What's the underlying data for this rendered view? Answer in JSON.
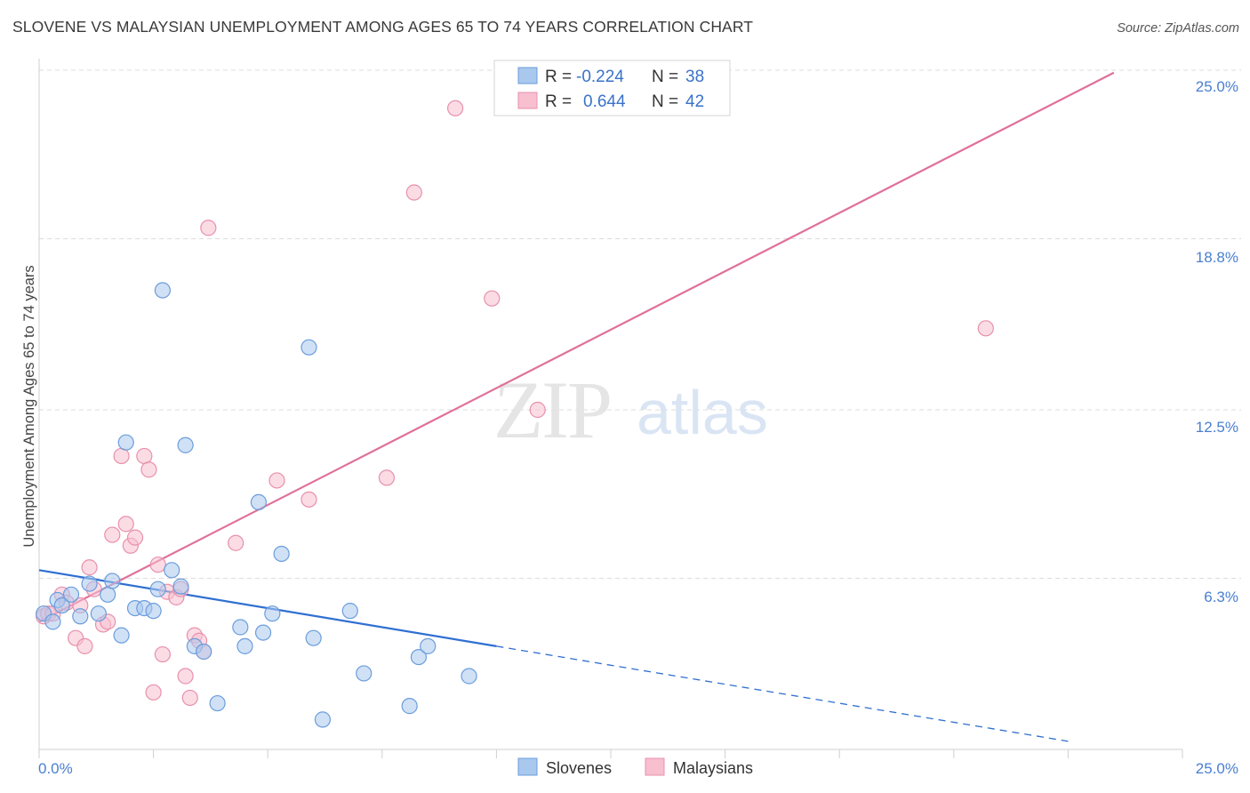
{
  "title": "SLOVENE VS MALAYSIAN UNEMPLOYMENT AMONG AGES 65 TO 74 YEARS CORRELATION CHART",
  "source": "Source: ZipAtlas.com",
  "watermark": {
    "zip": "ZIP",
    "atlas": "atlas"
  },
  "colors": {
    "blue_fill": "#a9c8ee",
    "blue_stroke": "#6b9ddc",
    "blue_line": "#2f6fd1",
    "pink_fill": "#f7bfd0",
    "pink_stroke": "#e890ac",
    "pink_line": "#e0709a",
    "grid": "#dcdcdc",
    "axis_label": "#4a7fd0"
  },
  "legend": {
    "r_label": "R =",
    "n_label": "N =",
    "rows": [
      {
        "series": "Slovenes",
        "r": "-0.224",
        "n": "38"
      },
      {
        "series": "Malaysians",
        "r": "0.644",
        "n": "42"
      }
    ]
  },
  "chart_data": {
    "type": "scatter",
    "title": "SLOVENE VS MALAYSIAN UNEMPLOYMENT AMONG AGES 65 TO 74 YEARS CORRELATION CHART",
    "xlabel": "",
    "ylabel": "Unemployment Among Ages 65 to 74 years",
    "xlim": [
      0,
      25
    ],
    "ylim": [
      0,
      25
    ],
    "x_tick_labels": [
      "0.0%",
      "25.0%"
    ],
    "y_ticks": [
      6.3,
      12.5,
      18.8,
      25.0
    ],
    "y_tick_labels": [
      "6.3%",
      "12.5%",
      "18.8%",
      "25.0%"
    ],
    "grid": true,
    "series": [
      {
        "name": "Slovenes",
        "points": [
          [
            0.1,
            5.0
          ],
          [
            0.3,
            4.7
          ],
          [
            0.4,
            5.5
          ],
          [
            0.5,
            5.3
          ],
          [
            0.7,
            5.7
          ],
          [
            0.9,
            4.9
          ],
          [
            1.1,
            6.1
          ],
          [
            1.3,
            5.0
          ],
          [
            1.5,
            5.7
          ],
          [
            1.6,
            6.2
          ],
          [
            1.8,
            4.2
          ],
          [
            1.9,
            11.3
          ],
          [
            2.1,
            5.2
          ],
          [
            2.3,
            5.2
          ],
          [
            2.5,
            5.1
          ],
          [
            2.6,
            5.9
          ],
          [
            2.7,
            16.9
          ],
          [
            2.9,
            6.6
          ],
          [
            3.1,
            6.0
          ],
          [
            3.2,
            11.2
          ],
          [
            3.4,
            3.8
          ],
          [
            3.6,
            3.6
          ],
          [
            3.9,
            1.7
          ],
          [
            4.4,
            4.5
          ],
          [
            4.5,
            3.8
          ],
          [
            4.8,
            9.1
          ],
          [
            4.9,
            4.3
          ],
          [
            5.1,
            5.0
          ],
          [
            5.3,
            7.2
          ],
          [
            5.9,
            14.8
          ],
          [
            6.0,
            4.1
          ],
          [
            6.2,
            1.1
          ],
          [
            6.8,
            5.1
          ],
          [
            7.1,
            2.8
          ],
          [
            8.1,
            1.6
          ],
          [
            8.3,
            3.4
          ],
          [
            8.5,
            3.8
          ],
          [
            9.4,
            2.7
          ]
        ]
      },
      {
        "name": "Malaysians",
        "points": [
          [
            0.1,
            4.9
          ],
          [
            0.2,
            5.0
          ],
          [
            0.3,
            5.0
          ],
          [
            0.5,
            5.7
          ],
          [
            0.6,
            5.4
          ],
          [
            0.8,
            4.1
          ],
          [
            0.9,
            5.3
          ],
          [
            1.0,
            3.8
          ],
          [
            1.1,
            6.7
          ],
          [
            1.2,
            5.9
          ],
          [
            1.4,
            4.6
          ],
          [
            1.5,
            4.7
          ],
          [
            1.6,
            7.9
          ],
          [
            1.8,
            10.8
          ],
          [
            1.9,
            8.3
          ],
          [
            2.0,
            7.5
          ],
          [
            2.1,
            7.8
          ],
          [
            2.3,
            10.8
          ],
          [
            2.4,
            10.3
          ],
          [
            2.5,
            2.1
          ],
          [
            2.6,
            6.8
          ],
          [
            2.7,
            3.5
          ],
          [
            2.8,
            5.8
          ],
          [
            3.0,
            5.6
          ],
          [
            3.1,
            5.9
          ],
          [
            3.2,
            2.7
          ],
          [
            3.3,
            1.9
          ],
          [
            3.4,
            4.2
          ],
          [
            3.5,
            4.0
          ],
          [
            3.6,
            3.6
          ],
          [
            3.7,
            19.2
          ],
          [
            4.3,
            7.6
          ],
          [
            5.2,
            9.9
          ],
          [
            5.9,
            9.2
          ],
          [
            7.6,
            10.0
          ],
          [
            8.2,
            20.5
          ],
          [
            9.1,
            23.6
          ],
          [
            9.9,
            16.6
          ],
          [
            10.9,
            12.5
          ],
          [
            20.7,
            15.5
          ]
        ]
      }
    ],
    "trend_lines": [
      {
        "series": "Slovenes",
        "solid_x": [
          0,
          10
        ],
        "dashed_x": [
          10,
          22.5
        ],
        "slope": -0.28,
        "intercept": 6.6
      },
      {
        "series": "Malaysians",
        "solid_x": [
          0,
          23.5
        ],
        "slope": 0.86,
        "intercept": 4.7
      }
    ]
  }
}
